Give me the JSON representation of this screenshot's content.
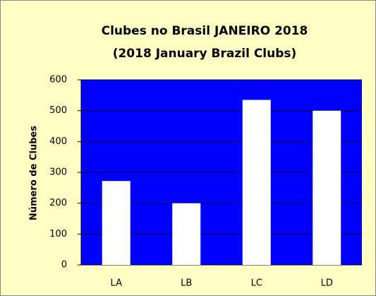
{
  "chart_data": {
    "type": "bar",
    "title": "Clubes no Brasil JANEIRO 2018",
    "subtitle": "(2018 January Brazil Clubs)",
    "y_label": "Número de Clubes",
    "categories": [
      "LA",
      "LB",
      "LC",
      "LD"
    ],
    "values": [
      272,
      200,
      535,
      500
    ],
    "color": "#ffffff",
    "plot_background": "#0000ff",
    "ylim": [
      0,
      600
    ],
    "yticks": [
      0,
      100,
      200,
      300,
      400,
      500,
      600
    ],
    "grid": true
  }
}
